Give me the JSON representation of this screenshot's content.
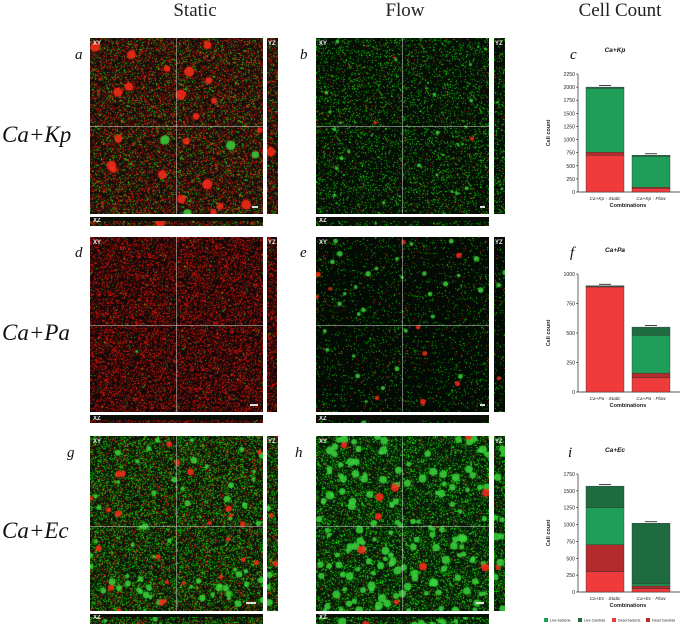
{
  "columns": {
    "static": "Static",
    "flow": "Flow",
    "count": "Cell Count"
  },
  "rows": [
    {
      "label": "Ca+Kp",
      "letters": [
        "a",
        "b",
        "c"
      ]
    },
    {
      "label": "Ca+Pa",
      "letters": [
        "d",
        "e",
        "f"
      ]
    },
    {
      "label": "Ca+Ec",
      "letters": [
        "g",
        "h",
        "i"
      ]
    }
  ],
  "view_tags": {
    "xy": "XY",
    "yz": "YZ",
    "xz": "XZ"
  },
  "colors": {
    "live_bacteria": "#1f9e5a",
    "live_candida": "#1e6b40",
    "dead_bacteria": "#ef3b3b",
    "dead_candida": "#b32b2b",
    "red_cell": "#ff2a1a",
    "green_cell": "#39d33c"
  },
  "chart_data": [
    {
      "type": "bar",
      "stacked": true,
      "title": "Ca+Kp",
      "xlabel": "Combinations",
      "ylabel": "Cell count",
      "categories": [
        "Ca+Kp - Static",
        "Ca+Kp - Flow"
      ],
      "ylim": [
        0,
        2250
      ],
      "yticks": [
        0,
        250,
        500,
        750,
        1000,
        1250,
        1500,
        1750,
        2000,
        2250
      ],
      "series": [
        {
          "name": "Dead bacteria",
          "values": [
            700,
            70
          ]
        },
        {
          "name": "Dead Candida",
          "values": [
            60,
            20
          ]
        },
        {
          "name": "Live bacteria",
          "values": [
            1220,
            590
          ]
        },
        {
          "name": "Live Candida",
          "values": [
            20,
            20
          ]
        }
      ]
    },
    {
      "type": "bar",
      "stacked": true,
      "title": "Ca+Pa",
      "xlabel": "Combinations",
      "ylabel": "Cell count",
      "categories": [
        "Ca+Pa - Static",
        "Ca+Pa - Flow"
      ],
      "ylim": [
        0,
        1000
      ],
      "yticks": [
        0,
        250,
        500,
        750,
        1000
      ],
      "series": [
        {
          "name": "Dead bacteria",
          "values": [
            890,
            120
          ]
        },
        {
          "name": "Dead Candida",
          "values": [
            5,
            40
          ]
        },
        {
          "name": "Live bacteria",
          "values": [
            5,
            320
          ]
        },
        {
          "name": "Live Candida",
          "values": [
            0,
            70
          ]
        }
      ]
    },
    {
      "type": "bar",
      "stacked": true,
      "title": "Ca+Ec",
      "xlabel": "Combinations",
      "ylabel": "Cell count",
      "categories": [
        "Ca+Ec - Static",
        "Ca+Ec - Flow"
      ],
      "ylim": [
        0,
        1750
      ],
      "yticks": [
        0,
        250,
        500,
        750,
        1000,
        1250,
        1500,
        1750
      ],
      "series": [
        {
          "name": "Dead bacteria",
          "values": [
            300,
            50
          ]
        },
        {
          "name": "Dead Candida",
          "values": [
            400,
            40
          ]
        },
        {
          "name": "Live bacteria",
          "values": [
            550,
            30
          ]
        },
        {
          "name": "Live Candida",
          "values": [
            320,
            900
          ]
        }
      ],
      "legend": [
        "Live bacteria",
        "Live Candida",
        "Dead bacteria",
        "Dead Candida"
      ]
    }
  ]
}
